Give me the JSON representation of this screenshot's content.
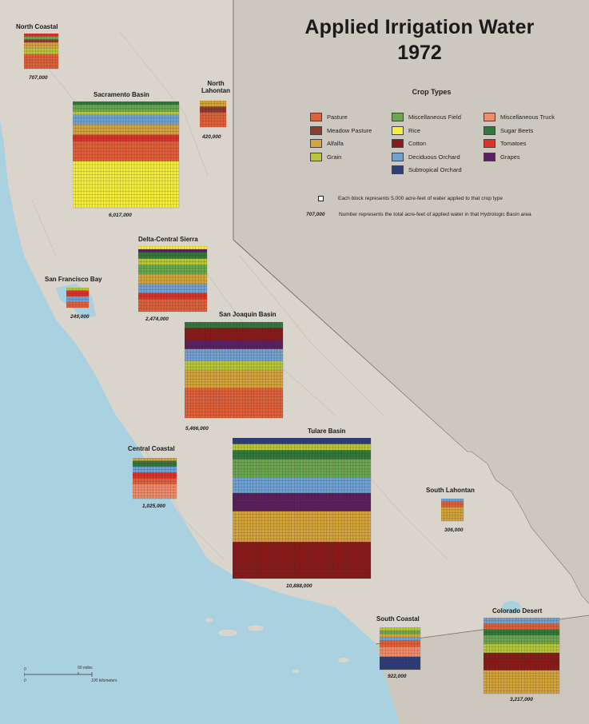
{
  "title": {
    "line1": "Applied Irrigation Water",
    "line2": "1972"
  },
  "legend": {
    "title": "Crop Types",
    "items": [
      {
        "label": "Pasture",
        "color": "#e0603a"
      },
      {
        "label": "Meadow Pasture",
        "color": "#8e3a2c"
      },
      {
        "label": "Alfalfa",
        "color": "#d4a53a"
      },
      {
        "label": "Grain",
        "color": "#b8c83c"
      },
      {
        "label": "Miscellaneous Field",
        "color": "#6aa84f"
      },
      {
        "label": "Rice",
        "color": "#f4ef3c"
      },
      {
        "label": "Cotton",
        "color": "#8a1a1a"
      },
      {
        "label": "Deciduous Orchard",
        "color": "#6fa3d6"
      },
      {
        "label": "Subtropical Orchard",
        "color": "#2e3e7a"
      },
      {
        "label": "Miscellaneous Truck",
        "color": "#f08c6c"
      },
      {
        "label": "Sugar Beets",
        "color": "#2f7a3a"
      },
      {
        "label": "Tomatoes",
        "color": "#e0302a"
      },
      {
        "label": "Grapes",
        "color": "#5a2060"
      }
    ]
  },
  "notes": {
    "block": "Each block represents 5,000 acre-feet of water applied to that crop type",
    "number_key": "707,000",
    "number": "Number represents the total acre-feet of applied water in that Hydrologic Basin area"
  },
  "basins": [
    {
      "name": "North Coastal",
      "total": "707,000",
      "cols": 12,
      "rows": 12,
      "bands": [
        [
          "Pasture",
          5
        ],
        [
          "Grain",
          2
        ],
        [
          "Alfalfa",
          2
        ],
        [
          "Meadow Pasture",
          1
        ],
        [
          "Miscellaneous Field",
          1
        ],
        [
          "Tomatoes",
          1
        ]
      ]
    },
    {
      "name": "Sacramento Basin",
      "total": "6,017,000",
      "cols": 38,
      "rows": 32,
      "bands": [
        [
          "Rice",
          14
        ],
        [
          "Pasture",
          6
        ],
        [
          "Tomatoes",
          2
        ],
        [
          "Alfalfa",
          3
        ],
        [
          "Deciduous Orchard",
          3
        ],
        [
          "Grain",
          1
        ],
        [
          "Miscellaneous Field",
          2
        ],
        [
          "Sugar Beets",
          1
        ]
      ]
    },
    {
      "name": "North\nLahontan",
      "total": "420,000",
      "cols": 9,
      "rows": 9,
      "bands": [
        [
          "Pasture",
          5
        ],
        [
          "Meadow Pasture",
          2
        ],
        [
          "Alfalfa",
          2
        ]
      ]
    },
    {
      "name": "Delta-Central Sierra",
      "total": "2,474,000",
      "cols": 24,
      "rows": 21,
      "bands": [
        [
          "Pasture",
          4
        ],
        [
          "Tomatoes",
          2
        ],
        [
          "Deciduous Orchard",
          3
        ],
        [
          "Alfalfa",
          3
        ],
        [
          "Miscellaneous Field",
          3
        ],
        [
          "Grain",
          2
        ],
        [
          "Sugar Beets",
          2
        ],
        [
          "Grapes",
          1
        ],
        [
          "Rice",
          1
        ]
      ]
    },
    {
      "name": "San Francisco Bay",
      "total": "249,000",
      "cols": 7,
      "rows": 7,
      "bands": [
        [
          "Pasture",
          2
        ],
        [
          "Deciduous Orchard",
          2
        ],
        [
          "Tomatoes",
          2
        ],
        [
          "Grain",
          1
        ]
      ]
    },
    {
      "name": "San Joaquin Basin",
      "total": "5,466,000",
      "cols": 34,
      "rows": 32,
      "bands": [
        [
          "Pasture",
          10
        ],
        [
          "Alfalfa",
          6
        ],
        [
          "Grain",
          3
        ],
        [
          "Deciduous Orchard",
          4
        ],
        [
          "Grapes",
          3
        ],
        [
          "Cotton",
          4
        ],
        [
          "Sugar Beets",
          2
        ]
      ]
    },
    {
      "name": "Central Coastal",
      "total": "1,025,000",
      "cols": 15,
      "rows": 14,
      "bands": [
        [
          "Miscellaneous Truck",
          5
        ],
        [
          "Pasture",
          2
        ],
        [
          "Tomatoes",
          2
        ],
        [
          "Deciduous Orchard",
          2
        ],
        [
          "Sugar Beets",
          2
        ],
        [
          "Alfalfa",
          1
        ]
      ]
    },
    {
      "name": "Tulare Basin",
      "total": "10,888,000",
      "cols": 47,
      "rows": 46,
      "bands": [
        [
          "Cotton",
          12
        ],
        [
          "Alfalfa",
          10
        ],
        [
          "Grapes",
          6
        ],
        [
          "Deciduous Orchard",
          5
        ],
        [
          "Miscellaneous Field",
          6
        ],
        [
          "Sugar Beets",
          3
        ],
        [
          "Grain",
          2
        ],
        [
          "Subtropical Orchard",
          2
        ]
      ]
    },
    {
      "name": "South Lahontan",
      "total": "306,000",
      "cols": 8,
      "rows": 8,
      "bands": [
        [
          "Alfalfa",
          5
        ],
        [
          "Pasture",
          2
        ],
        [
          "Deciduous Orchard",
          1
        ]
      ]
    },
    {
      "name": "South Coastal",
      "total": "922,000",
      "cols": 14,
      "rows": 13,
      "bands": [
        [
          "Subtropical Orchard",
          4
        ],
        [
          "Miscellaneous Truck",
          3
        ],
        [
          "Pasture",
          2
        ],
        [
          "Deciduous Orchard",
          1
        ],
        [
          "Alfalfa",
          1
        ],
        [
          "Miscellaneous Field",
          1
        ],
        [
          "Grain",
          1
        ]
      ]
    },
    {
      "name": "Colorado Desert",
      "total": "3,217,000",
      "cols": 26,
      "rows": 26,
      "bands": [
        [
          "Alfalfa",
          8
        ],
        [
          "Cotton",
          6
        ],
        [
          "Grain",
          3
        ],
        [
          "Miscellaneous Field",
          3
        ],
        [
          "Sugar Beets",
          2
        ],
        [
          "Pasture",
          2
        ],
        [
          "Deciduous Orchard",
          2
        ]
      ]
    }
  ],
  "scale": {
    "miles": "50 miles",
    "km": "100 kilometers",
    "zero": "0"
  }
}
